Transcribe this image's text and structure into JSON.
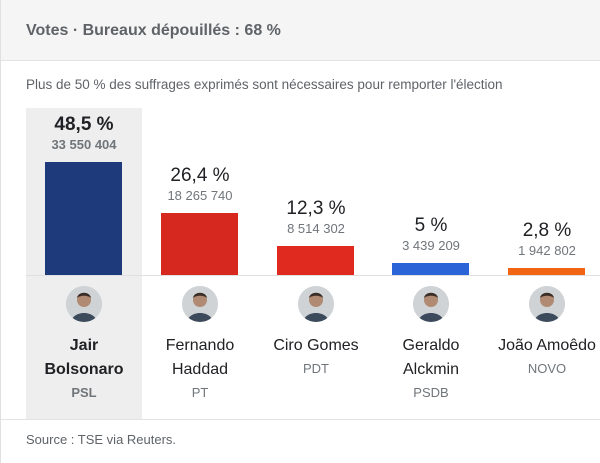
{
  "header": {
    "title": "Votes · Bureaux dépouillés : 68 %"
  },
  "subtitle": "Plus de 50 % des suffrages exprimés sont nécessaires pour remporter l'élection",
  "footer": {
    "source": "Source : TSE via Reuters."
  },
  "chart_data": {
    "type": "bar",
    "categories": [
      "Jair Bolsonaro",
      "Fernando Haddad",
      "Ciro Gomes",
      "Geraldo Alckmin",
      "João Amoêdo"
    ],
    "values": [
      48.5,
      26.4,
      12.3,
      5,
      2.8
    ],
    "ylim": [
      0,
      50
    ],
    "candidates": [
      {
        "name": "Jair\nBolsonaro",
        "party": "PSL",
        "percent_label": "48,5 %",
        "votes_label": "33 550 404",
        "percent": 48.5,
        "color": "#1f3a7a",
        "winner": true
      },
      {
        "name": "Fernando\nHaddad",
        "party": "PT",
        "percent_label": "26,4 %",
        "votes_label": "18 265 740",
        "percent": 26.4,
        "color": "#d6281e",
        "winner": false
      },
      {
        "name": "Ciro Gomes",
        "party": "PDT",
        "percent_label": "12,3 %",
        "votes_label": "8 514 302",
        "percent": 12.3,
        "color": "#e02a1f",
        "winner": false
      },
      {
        "name": "Geraldo\nAlckmin",
        "party": "PSDB",
        "percent_label": "5 %",
        "votes_label": "3 439 209",
        "percent": 5,
        "color": "#2a64d6",
        "winner": false
      },
      {
        "name": "João Amoêdo",
        "party": "NOVO",
        "percent_label": "2,8 %",
        "votes_label": "1 942 802",
        "percent": 2.8,
        "color": "#f06414",
        "winner": false
      }
    ]
  },
  "icons": {
    "avatar": "candidate-photo-icon"
  }
}
